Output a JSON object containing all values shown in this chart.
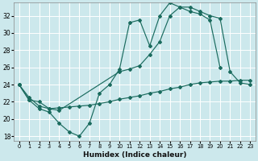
{
  "xlabel": "Humidex (Indice chaleur)",
  "bg_color": "#cce8ec",
  "grid_color": "#ffffff",
  "line_color": "#1a6b5e",
  "xlim": [
    -0.5,
    23.5
  ],
  "ylim": [
    17.5,
    33.5
  ],
  "xticks": [
    0,
    1,
    2,
    3,
    4,
    5,
    6,
    7,
    8,
    9,
    10,
    11,
    12,
    13,
    14,
    15,
    16,
    17,
    18,
    19,
    20,
    21,
    22,
    23
  ],
  "yticks": [
    18,
    20,
    22,
    24,
    26,
    28,
    30,
    32
  ],
  "line1_x": [
    0,
    1,
    2,
    3,
    4,
    5,
    6,
    7,
    8,
    9,
    10,
    11,
    12,
    13,
    14,
    15,
    16,
    17,
    18,
    19,
    20
  ],
  "line1_y": [
    24.0,
    22.2,
    21.2,
    20.8,
    19.5,
    18.5,
    18.0,
    19.5,
    23.0,
    24.0,
    25.8,
    31.2,
    31.5,
    28.5,
    32.0,
    33.5,
    33.0,
    32.5,
    32.2,
    31.5,
    26.0
  ],
  "line2_x": [
    0,
    1,
    2,
    3,
    4,
    10,
    11,
    12,
    13,
    14,
    15,
    16,
    17,
    18,
    19,
    20,
    21,
    22,
    23
  ],
  "line2_y": [
    24.0,
    22.5,
    21.5,
    21.2,
    21.0,
    25.5,
    25.8,
    26.2,
    27.5,
    29.0,
    32.0,
    33.0,
    33.0,
    32.5,
    32.0,
    31.7,
    25.5,
    24.2,
    24.0
  ],
  "line3_x": [
    0,
    1,
    2,
    3,
    4,
    5,
    6,
    7,
    8,
    9,
    10,
    11,
    12,
    13,
    14,
    15,
    16,
    17,
    18,
    19,
    20,
    21,
    22,
    23
  ],
  "line3_y": [
    24.0,
    22.2,
    22.0,
    21.2,
    21.3,
    21.4,
    21.5,
    21.6,
    21.8,
    22.0,
    22.3,
    22.5,
    22.7,
    23.0,
    23.2,
    23.5,
    23.7,
    24.0,
    24.2,
    24.3,
    24.4,
    24.4,
    24.5,
    24.5
  ]
}
